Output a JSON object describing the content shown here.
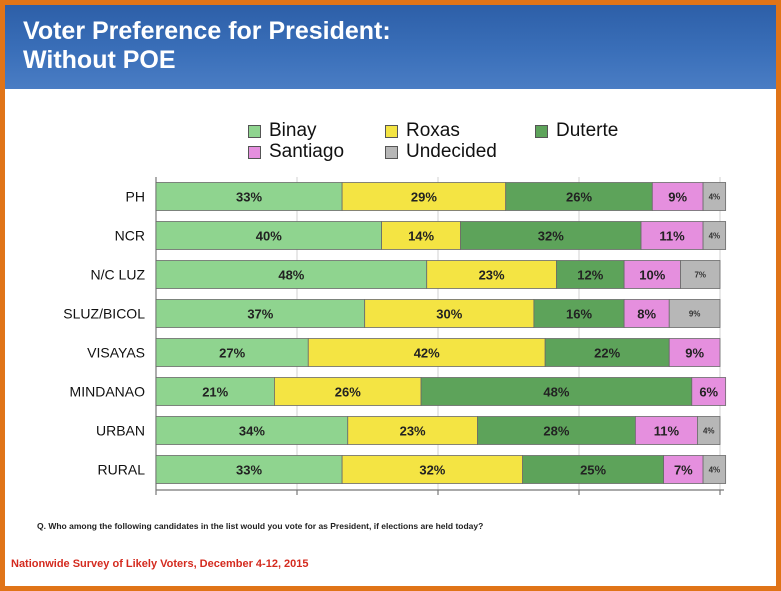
{
  "header": {
    "title_line1": "Voter Preference for President:",
    "title_line2": "Without POE"
  },
  "question": "Q. Who among the following candidates in the list would you vote for as President, if elections are held today?",
  "footer": "Nationwide Survey of Likely Voters, December 4-12, 2015",
  "colors": {
    "Binay": "#8fd48f",
    "Roxas": "#f4e443",
    "Duterte": "#5da35a",
    "Santiago": "#e58fde",
    "Undecided": "#b7b7b7",
    "frame": "#e07418",
    "header": "#3a6fb9",
    "footer_text": "#d42a1e"
  },
  "chart_data": {
    "type": "bar",
    "orientation": "horizontal",
    "stacked": true,
    "categories": [
      "PH",
      "NCR",
      "N/C LUZ",
      "SLUZ/BICOL",
      "VISAYAS",
      "MINDANAO",
      "URBAN",
      "RURAL"
    ],
    "series": [
      {
        "name": "Binay",
        "values": [
          33,
          40,
          48,
          37,
          27,
          21,
          34,
          33
        ],
        "labels": [
          "33%",
          "40%",
          "48%",
          "37%",
          "27%",
          "21%",
          "34%",
          "33%"
        ]
      },
      {
        "name": "Roxas",
        "values": [
          29,
          14,
          23,
          30,
          42,
          26,
          23,
          32
        ],
        "labels": [
          "29%",
          "14%",
          "23%",
          "30%",
          "42%",
          "26%",
          "23%",
          "32%"
        ]
      },
      {
        "name": "Duterte",
        "values": [
          26,
          32,
          12,
          16,
          22,
          48,
          28,
          25
        ],
        "labels": [
          "26%",
          "32%",
          "12%",
          "16%",
          "22%",
          "48%",
          "28%",
          "25%"
        ]
      },
      {
        "name": "Santiago",
        "values": [
          9,
          11,
          10,
          8,
          9,
          6,
          11,
          7
        ],
        "labels": [
          "9%",
          "11%",
          "10%",
          "8%",
          "9%",
          "6%",
          "11%",
          "7%"
        ]
      },
      {
        "name": "Undecided",
        "values": [
          4,
          4,
          7,
          9,
          0,
          0,
          4,
          4
        ],
        "labels": [
          "4%",
          "4%",
          "7%",
          "9%",
          "",
          "",
          "4%",
          "4%"
        ]
      }
    ],
    "xlim": [
      0,
      100
    ],
    "legend_position": "top",
    "grid": true
  }
}
